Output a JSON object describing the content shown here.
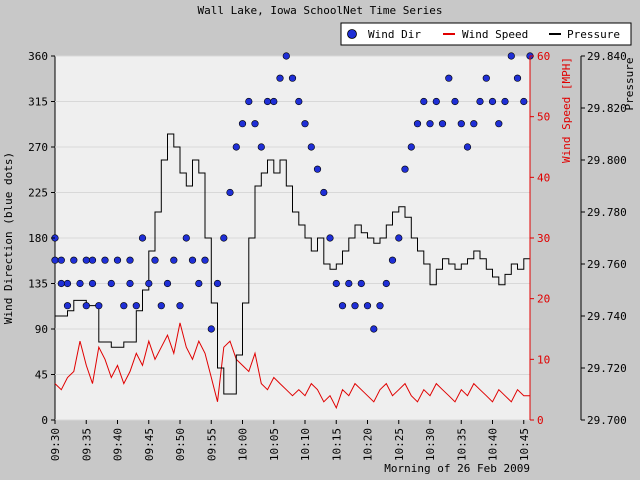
{
  "chart_data": {
    "type": "line",
    "title": "Wall Lake, Iowa SchoolNet Time Series",
    "xlabel": "Morning of 26 Feb 2009",
    "ylabel_left": "Wind Direction (blue dots)",
    "ylabel_mid": "Wind Speed [MPH]",
    "ylabel_right": "Pressure",
    "x_ticks": [
      "09:30",
      "09:35",
      "09:40",
      "09:45",
      "09:50",
      "09:55",
      "10:00",
      "10:05",
      "10:10",
      "10:15",
      "10:20",
      "10:25",
      "10:30",
      "10:35",
      "10:40",
      "10:45"
    ],
    "x_range_minutes": [
      0,
      76
    ],
    "dir_axis": {
      "ticks": [
        0,
        45,
        90,
        135,
        180,
        225,
        270,
        315,
        360
      ],
      "range": [
        0,
        360
      ]
    },
    "speed_axis": {
      "ticks": [
        0,
        10,
        20,
        30,
        40,
        50,
        60
      ],
      "range": [
        0,
        60
      ]
    },
    "pressure_axis": {
      "ticks": [
        "29.700",
        "29.720",
        "29.740",
        "29.760",
        "29.780",
        "29.800",
        "29.820",
        "29.840"
      ],
      "range": [
        29.7,
        29.84
      ]
    },
    "legend": {
      "position": "top-right",
      "items": [
        "Wind Dir",
        "Wind Speed",
        "Pressure"
      ]
    },
    "colors": {
      "wind_dir": "#1f2fd6",
      "wind_speed": "#e00000",
      "pressure": "#000000",
      "plot_bg": "#efefef"
    },
    "series": [
      {
        "name": "Wind Dir",
        "axis": "left",
        "style": "dots",
        "points": [
          [
            0,
            180
          ],
          [
            0,
            158
          ],
          [
            1,
            135
          ],
          [
            1,
            158
          ],
          [
            2,
            135
          ],
          [
            2,
            113
          ],
          [
            3,
            158
          ],
          [
            4,
            135
          ],
          [
            5,
            158
          ],
          [
            5,
            113
          ],
          [
            6,
            135
          ],
          [
            6,
            158
          ],
          [
            7,
            113
          ],
          [
            8,
            158
          ],
          [
            9,
            135
          ],
          [
            10,
            158
          ],
          [
            11,
            113
          ],
          [
            12,
            135
          ],
          [
            12,
            158
          ],
          [
            13,
            113
          ],
          [
            14,
            180
          ],
          [
            15,
            135
          ],
          [
            16,
            158
          ],
          [
            17,
            113
          ],
          [
            18,
            135
          ],
          [
            19,
            158
          ],
          [
            20,
            113
          ],
          [
            21,
            180
          ],
          [
            22,
            158
          ],
          [
            23,
            135
          ],
          [
            24,
            158
          ],
          [
            25,
            90
          ],
          [
            26,
            135
          ],
          [
            27,
            180
          ],
          [
            28,
            225
          ],
          [
            29,
            270
          ],
          [
            30,
            293
          ],
          [
            31,
            315
          ],
          [
            32,
            293
          ],
          [
            33,
            270
          ],
          [
            34,
            315
          ],
          [
            35,
            315
          ],
          [
            36,
            338
          ],
          [
            37,
            360
          ],
          [
            38,
            338
          ],
          [
            39,
            315
          ],
          [
            40,
            293
          ],
          [
            41,
            270
          ],
          [
            42,
            248
          ],
          [
            43,
            225
          ],
          [
            44,
            180
          ],
          [
            45,
            135
          ],
          [
            46,
            113
          ],
          [
            47,
            135
          ],
          [
            48,
            113
          ],
          [
            49,
            135
          ],
          [
            50,
            113
          ],
          [
            51,
            90
          ],
          [
            52,
            113
          ],
          [
            53,
            135
          ],
          [
            54,
            158
          ],
          [
            55,
            180
          ],
          [
            56,
            248
          ],
          [
            57,
            270
          ],
          [
            58,
            293
          ],
          [
            59,
            315
          ],
          [
            60,
            293
          ],
          [
            61,
            315
          ],
          [
            62,
            293
          ],
          [
            63,
            338
          ],
          [
            64,
            315
          ],
          [
            65,
            293
          ],
          [
            66,
            270
          ],
          [
            67,
            293
          ],
          [
            68,
            315
          ],
          [
            69,
            338
          ],
          [
            70,
            315
          ],
          [
            71,
            293
          ],
          [
            72,
            315
          ],
          [
            73,
            360
          ],
          [
            74,
            338
          ],
          [
            75,
            315
          ],
          [
            76,
            360
          ]
        ]
      },
      {
        "name": "Wind Speed",
        "axis": "mid",
        "style": "line",
        "points": [
          [
            0,
            6
          ],
          [
            1,
            5
          ],
          [
            2,
            7
          ],
          [
            3,
            8
          ],
          [
            4,
            13
          ],
          [
            5,
            9
          ],
          [
            6,
            6
          ],
          [
            7,
            12
          ],
          [
            8,
            10
          ],
          [
            9,
            7
          ],
          [
            10,
            9
          ],
          [
            11,
            6
          ],
          [
            12,
            8
          ],
          [
            13,
            11
          ],
          [
            14,
            9
          ],
          [
            15,
            13
          ],
          [
            16,
            10
          ],
          [
            17,
            12
          ],
          [
            18,
            14
          ],
          [
            19,
            11
          ],
          [
            20,
            16
          ],
          [
            21,
            12
          ],
          [
            22,
            10
          ],
          [
            23,
            13
          ],
          [
            24,
            11
          ],
          [
            25,
            7
          ],
          [
            26,
            3
          ],
          [
            27,
            12
          ],
          [
            28,
            13
          ],
          [
            29,
            10
          ],
          [
            30,
            9
          ],
          [
            31,
            8
          ],
          [
            32,
            11
          ],
          [
            33,
            6
          ],
          [
            34,
            5
          ],
          [
            35,
            7
          ],
          [
            36,
            6
          ],
          [
            37,
            5
          ],
          [
            38,
            4
          ],
          [
            39,
            5
          ],
          [
            40,
            4
          ],
          [
            41,
            6
          ],
          [
            42,
            5
          ],
          [
            43,
            3
          ],
          [
            44,
            4
          ],
          [
            45,
            2
          ],
          [
            46,
            5
          ],
          [
            47,
            4
          ],
          [
            48,
            6
          ],
          [
            49,
            5
          ],
          [
            50,
            4
          ],
          [
            51,
            3
          ],
          [
            52,
            5
          ],
          [
            53,
            6
          ],
          [
            54,
            4
          ],
          [
            55,
            5
          ],
          [
            56,
            6
          ],
          [
            57,
            4
          ],
          [
            58,
            3
          ],
          [
            59,
            5
          ],
          [
            60,
            4
          ],
          [
            61,
            6
          ],
          [
            62,
            5
          ],
          [
            63,
            4
          ],
          [
            64,
            3
          ],
          [
            65,
            5
          ],
          [
            66,
            4
          ],
          [
            67,
            6
          ],
          [
            68,
            5
          ],
          [
            69,
            4
          ],
          [
            70,
            3
          ],
          [
            71,
            5
          ],
          [
            72,
            4
          ],
          [
            73,
            3
          ],
          [
            74,
            5
          ],
          [
            75,
            4
          ],
          [
            76,
            4
          ]
        ]
      },
      {
        "name": "Pressure",
        "axis": "right",
        "style": "step",
        "points": [
          [
            0,
            29.74
          ],
          [
            2,
            29.742
          ],
          [
            3,
            29.746
          ],
          [
            5,
            29.744
          ],
          [
            7,
            29.73
          ],
          [
            9,
            29.728
          ],
          [
            11,
            29.73
          ],
          [
            13,
            29.742
          ],
          [
            14,
            29.75
          ],
          [
            15,
            29.765
          ],
          [
            16,
            29.78
          ],
          [
            17,
            29.8
          ],
          [
            18,
            29.81
          ],
          [
            19,
            29.805
          ],
          [
            20,
            29.795
          ],
          [
            21,
            29.79
          ],
          [
            22,
            29.8
          ],
          [
            23,
            29.795
          ],
          [
            24,
            29.77
          ],
          [
            25,
            29.745
          ],
          [
            26,
            29.72
          ],
          [
            27,
            29.71
          ],
          [
            28,
            29.71
          ],
          [
            29,
            29.725
          ],
          [
            30,
            29.745
          ],
          [
            31,
            29.77
          ],
          [
            32,
            29.79
          ],
          [
            33,
            29.795
          ],
          [
            34,
            29.8
          ],
          [
            35,
            29.795
          ],
          [
            36,
            29.8
          ],
          [
            37,
            29.79
          ],
          [
            38,
            29.78
          ],
          [
            39,
            29.775
          ],
          [
            40,
            29.77
          ],
          [
            41,
            29.765
          ],
          [
            42,
            29.77
          ],
          [
            43,
            29.76
          ],
          [
            44,
            29.758
          ],
          [
            45,
            29.76
          ],
          [
            46,
            29.765
          ],
          [
            47,
            29.77
          ],
          [
            48,
            29.775
          ],
          [
            49,
            29.772
          ],
          [
            50,
            29.77
          ],
          [
            51,
            29.768
          ],
          [
            52,
            29.77
          ],
          [
            53,
            29.775
          ],
          [
            54,
            29.78
          ],
          [
            55,
            29.782
          ],
          [
            56,
            29.778
          ],
          [
            57,
            29.77
          ],
          [
            58,
            29.765
          ],
          [
            59,
            29.76
          ],
          [
            60,
            29.752
          ],
          [
            61,
            29.758
          ],
          [
            62,
            29.762
          ],
          [
            63,
            29.76
          ],
          [
            64,
            29.758
          ],
          [
            65,
            29.76
          ],
          [
            66,
            29.762
          ],
          [
            67,
            29.765
          ],
          [
            68,
            29.762
          ],
          [
            69,
            29.758
          ],
          [
            70,
            29.755
          ],
          [
            71,
            29.752
          ],
          [
            72,
            29.756
          ],
          [
            73,
            29.76
          ],
          [
            74,
            29.758
          ],
          [
            75,
            29.762
          ],
          [
            76,
            29.765
          ]
        ]
      }
    ]
  }
}
